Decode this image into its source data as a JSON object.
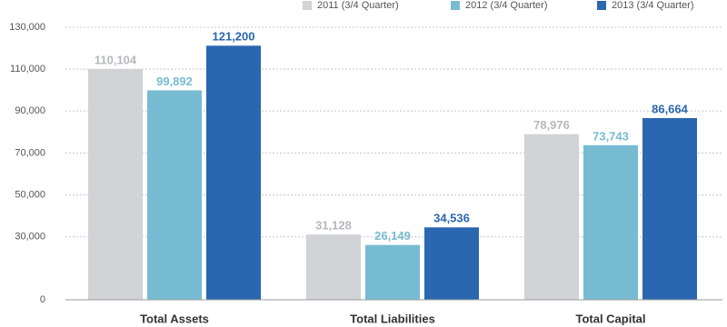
{
  "chart_data": {
    "type": "bar",
    "categories": [
      "Total Assets",
      "Total Liabilities",
      "Total Capital"
    ],
    "series": [
      {
        "name": "2011 (3/4 Quarter)",
        "color": "#d1d3d6",
        "label_color": "#b5b8bc",
        "values": [
          110104,
          31128,
          78976
        ],
        "value_labels": [
          "110,104",
          "31,128",
          "78,976"
        ]
      },
      {
        "name": "2012 (3/4 Quarter)",
        "color": "#77bbd2",
        "label_color": "#77bbd2",
        "values": [
          99892,
          26149,
          73743
        ],
        "value_labels": [
          "99,892",
          "26,149",
          "73,743"
        ]
      },
      {
        "name": "2013 (3/4 Quarter)",
        "color": "#2b66b0",
        "label_color": "#2b66b0",
        "values": [
          121200,
          34536,
          86664
        ],
        "value_labels": [
          "121,200",
          "34,536",
          "86,664"
        ]
      }
    ],
    "ylim": [
      0,
      130000
    ],
    "yticks": [
      0,
      {
        "value": 30000,
        "label": "30,000"
      },
      {
        "value": 50000,
        "label": "50,000"
      },
      {
        "value": 70000,
        "label": "70,000"
      },
      {
        "value": 90000,
        "label": "90,000"
      },
      {
        "value": 110000,
        "label": "110,000"
      },
      {
        "value": 130000,
        "label": "130,000"
      }
    ],
    "grid": true,
    "legend": "top-right"
  }
}
